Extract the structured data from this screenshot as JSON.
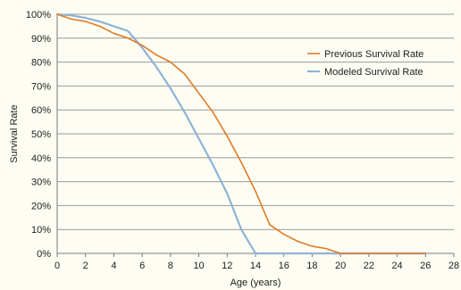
{
  "chart_data": {
    "type": "line",
    "title": "",
    "xlabel": "Age (years)",
    "ylabel": "Survival Rate",
    "xlim": [
      0,
      28
    ],
    "ylim": [
      0,
      100
    ],
    "x_ticks": [
      0,
      2,
      4,
      6,
      8,
      10,
      12,
      14,
      16,
      18,
      20,
      22,
      24,
      26,
      28
    ],
    "y_ticks": [
      0,
      10,
      20,
      30,
      40,
      50,
      60,
      70,
      80,
      90,
      100
    ],
    "y_tick_labels": [
      "0%",
      "10%",
      "20%",
      "30%",
      "40%",
      "50%",
      "60%",
      "70%",
      "80%",
      "90%",
      "100%"
    ],
    "grid": "horizontal",
    "legend_position": "top-right",
    "background_color": "#fdfdf3",
    "series": [
      {
        "name": "Previous Survival Rate",
        "color": "#e07b24",
        "x": [
          0,
          1,
          2,
          3,
          4,
          5,
          6,
          7,
          8,
          9,
          10,
          11,
          12,
          13,
          14,
          15,
          16,
          17,
          18,
          19,
          20,
          21,
          22,
          23,
          24,
          25,
          26
        ],
        "y": [
          100,
          98,
          97,
          95,
          92,
          90,
          87,
          83,
          80,
          75,
          67,
          59,
          49,
          38,
          26,
          12,
          8,
          5,
          3,
          2,
          0,
          0,
          0,
          0,
          0,
          0,
          0
        ]
      },
      {
        "name": "Modeled Survival Rate",
        "color": "#8fb3d6",
        "x": [
          0,
          1,
          2,
          3,
          4,
          5,
          6,
          7,
          8,
          9,
          10,
          11,
          12,
          13,
          14,
          15,
          16,
          17,
          18,
          19,
          20,
          21,
          22,
          23,
          24,
          25,
          26
        ],
        "y": [
          100,
          99.5,
          98.5,
          97,
          95,
          93,
          86,
          78,
          69,
          59,
          48,
          37,
          25,
          10,
          0,
          0,
          0,
          0,
          0,
          0,
          0,
          0,
          0,
          0,
          0,
          0,
          0
        ]
      }
    ]
  }
}
